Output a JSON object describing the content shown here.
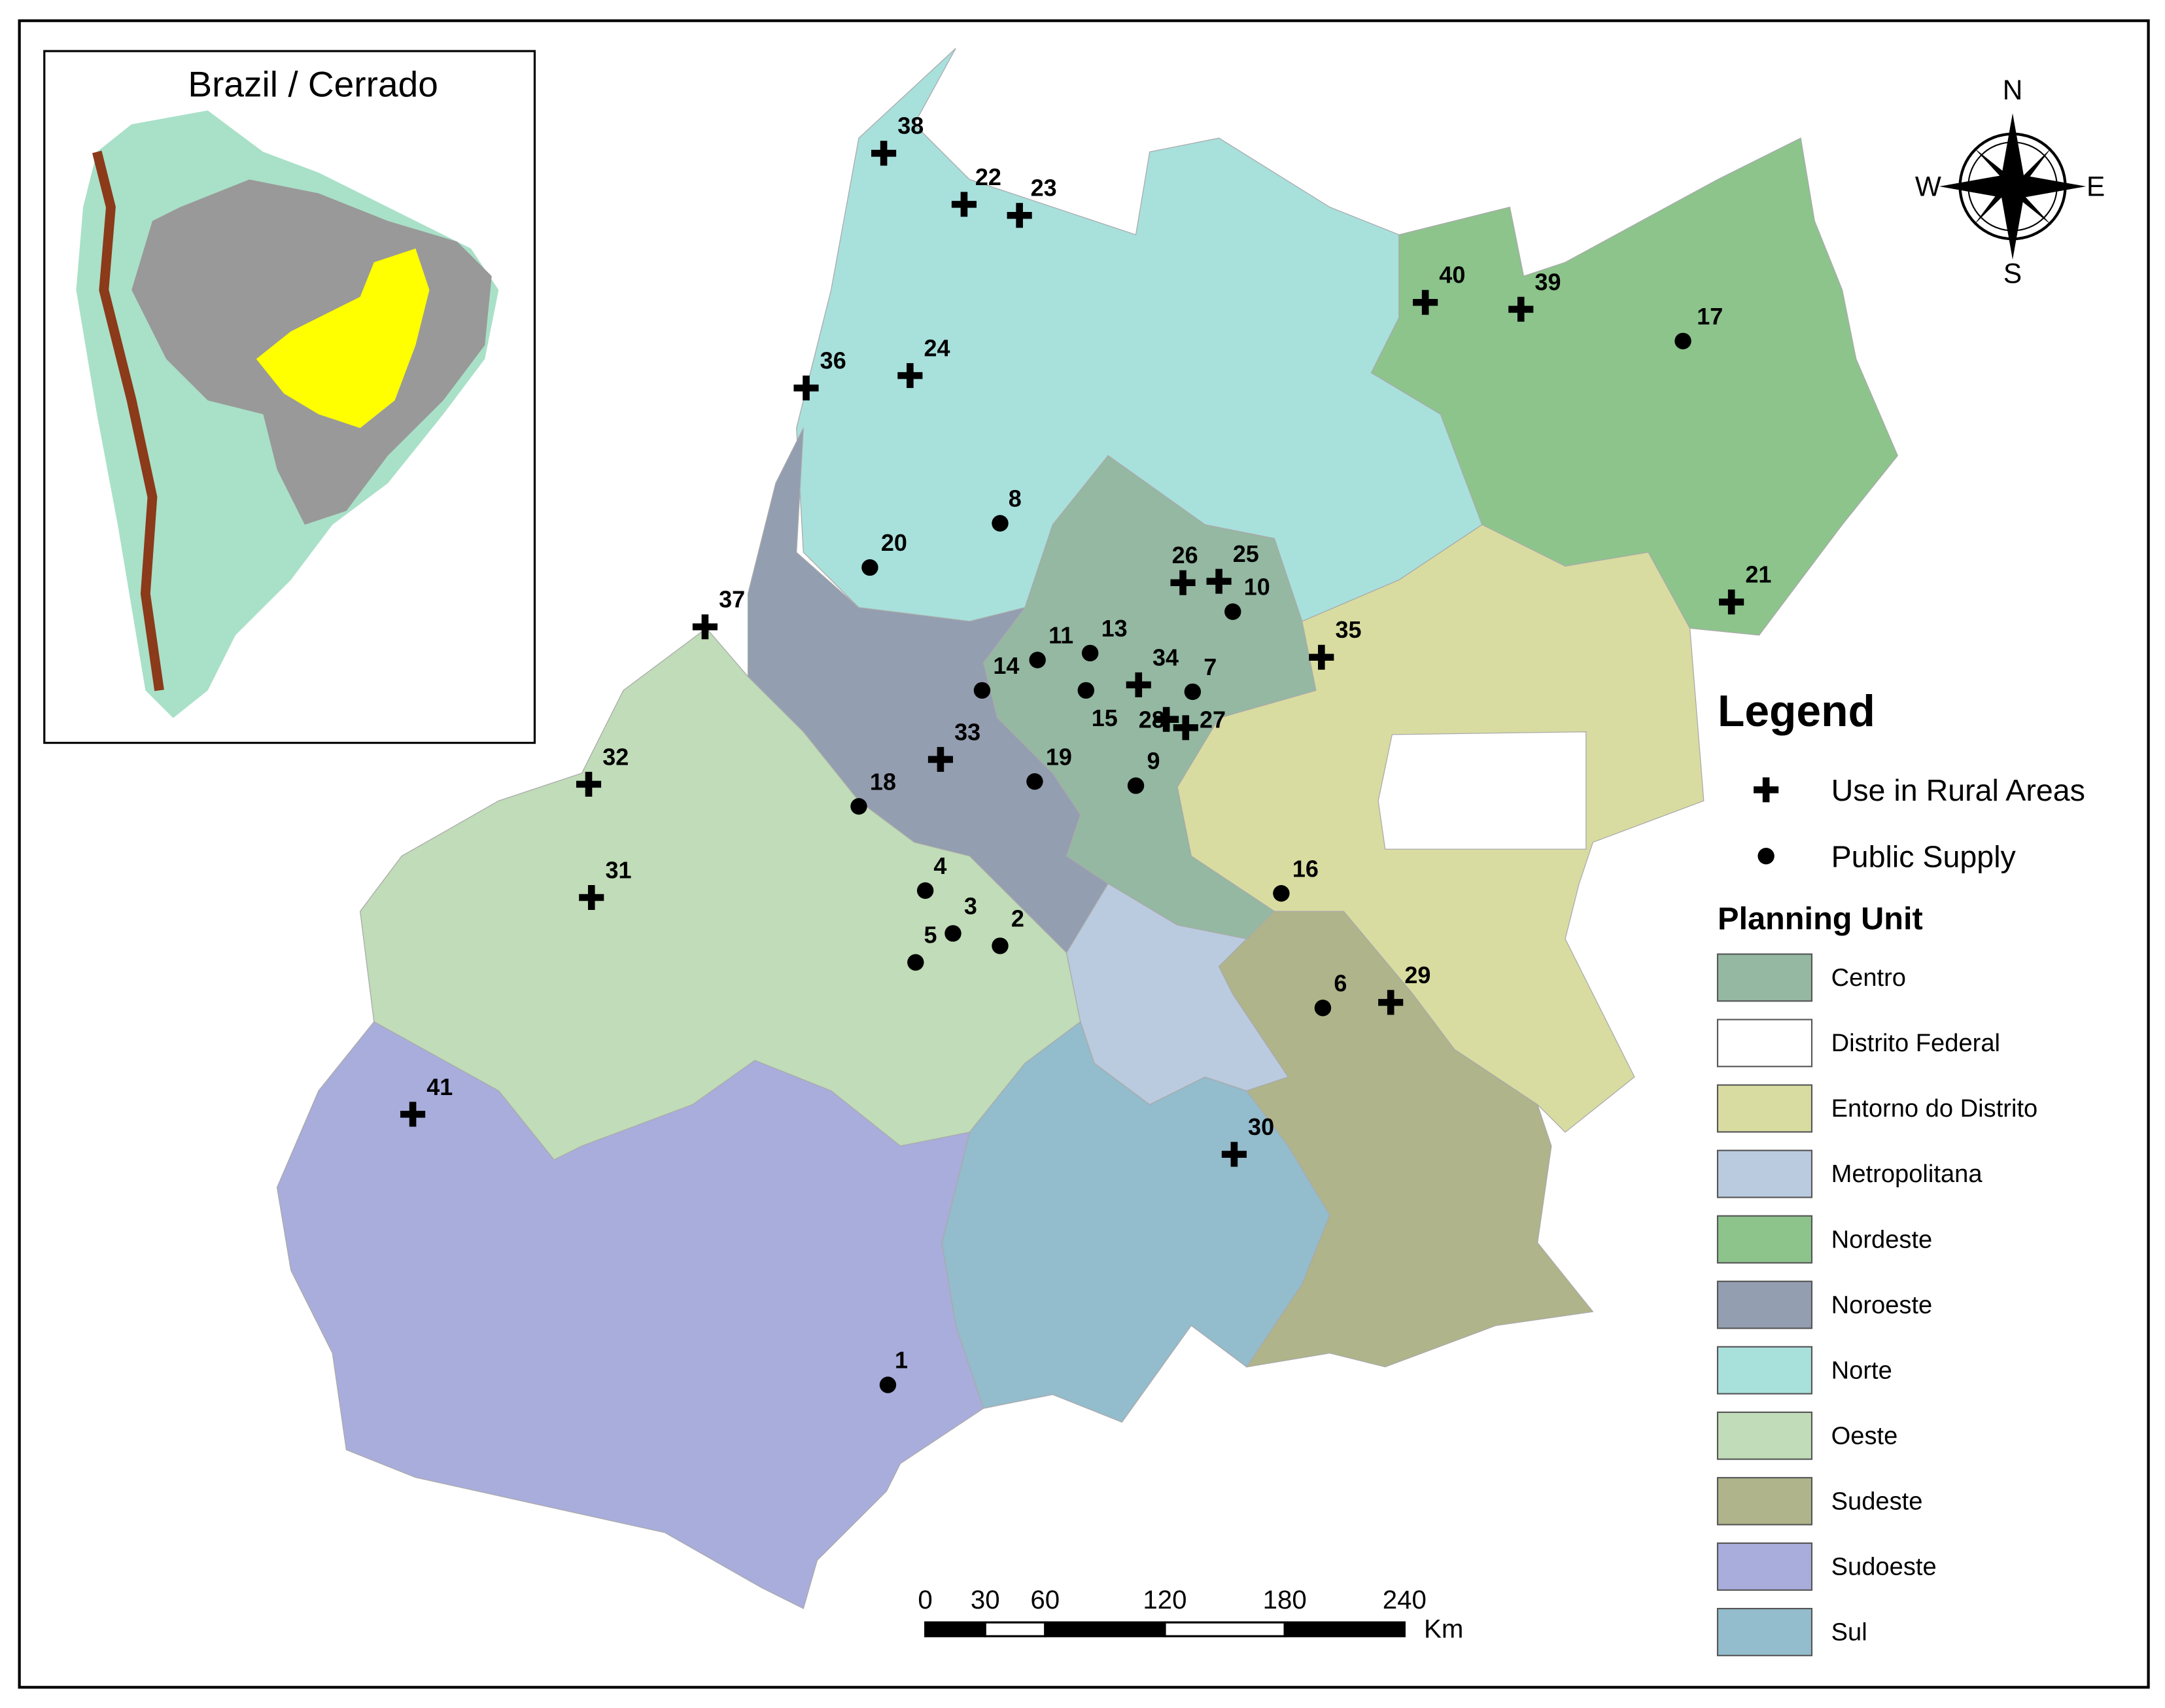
{
  "inset": {
    "title": "Brazil / Cerrado"
  },
  "compass": {
    "north": "N",
    "south": "S",
    "west": "W",
    "east": "E"
  },
  "legend": {
    "title": "Legend",
    "symbols": [
      {
        "label": "Use in Rural Areas",
        "points": [
          "21",
          "22",
          "23",
          "24",
          "25",
          "26",
          "27",
          "28",
          "29",
          "30",
          "31",
          "32",
          "33",
          "34",
          "35",
          "36",
          "37",
          "38",
          "39",
          "40",
          "41"
        ]
      },
      {
        "label": "Public Supply",
        "points": [
          "1",
          "2",
          "3",
          "4",
          "5",
          "6",
          "7",
          "8",
          "9",
          "10",
          "11",
          "13",
          "14",
          "15",
          "16",
          "17",
          "18",
          "19",
          "20"
        ]
      }
    ],
    "units_title": "Planning Unit",
    "units": [
      {
        "name": "Centro",
        "color": "#94b8a2"
      },
      {
        "name": "Distrito Federal",
        "color": "#ffffff"
      },
      {
        "name": "Entorno do Distrito",
        "color": "#d9dca0"
      },
      {
        "name": "Metropolitana",
        "color": "#bacbdf"
      },
      {
        "name": "Nordeste",
        "color": "#8cc48c"
      },
      {
        "name": "Noroeste",
        "color": "#939eb0"
      },
      {
        "name": "Norte",
        "color": "#a8e0dc"
      },
      {
        "name": "Oeste",
        "color": "#c0dcb8"
      },
      {
        "name": "Sudeste",
        "color": "#afb48a"
      },
      {
        "name": "Sudoeste",
        "color": "#a8addc"
      },
      {
        "name": "Sul",
        "color": "#93bccd"
      }
    ]
  },
  "scale_bar": {
    "ticks": [
      0,
      30,
      60,
      120,
      180,
      240
    ],
    "unit": "Km"
  }
}
